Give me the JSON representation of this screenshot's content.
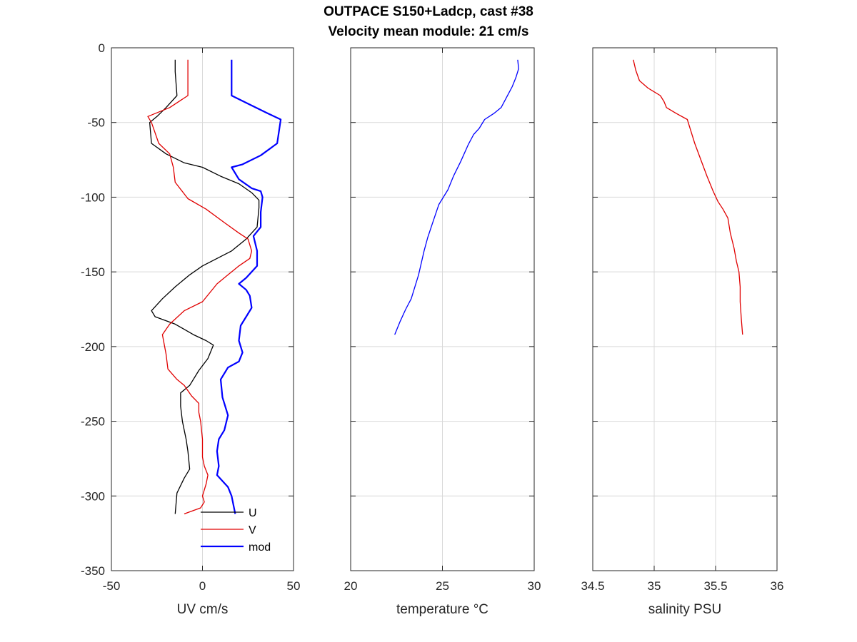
{
  "title_line1": "OUTPACE S150+Ladcp, cast #38",
  "title_line2": "Velocity mean module:  21 cm/s",
  "colors": {
    "U": "#000000",
    "V": "#e00000",
    "mod": "#0000ff",
    "temperature": "#0000ff",
    "salinity": "#e00000",
    "grid": "#d9d9d9",
    "axis": "#262626"
  },
  "chart_data": [
    {
      "type": "line",
      "xlabel": "UV cm/s",
      "ylabel": "",
      "xlim": [
        -50,
        50
      ],
      "ylim": [
        -350,
        0
      ],
      "xticks": [
        -50,
        0,
        50
      ],
      "yticks": [
        0,
        -50,
        -100,
        -150,
        -200,
        -250,
        -300,
        -350
      ],
      "grid": true,
      "legend_placement": "bottom-right",
      "series": [
        {
          "name": "U",
          "color": "#000000",
          "x": [
            -15,
            -15,
            -14,
            -20,
            -25,
            -29,
            -28,
            -20,
            -10,
            0,
            10,
            20,
            27,
            31,
            31,
            30,
            24,
            16,
            8,
            0,
            -7,
            -15,
            -22,
            -28,
            -26,
            -15,
            -5,
            2,
            6,
            3,
            -2,
            -7,
            -12,
            -12,
            -11,
            -9,
            -8,
            -7,
            -10,
            -14,
            -15
          ],
          "y": [
            -8,
            -16,
            -32,
            -40,
            -46,
            -50,
            -64,
            -71,
            -77,
            -80,
            -86,
            -91,
            -97,
            -102,
            -107,
            -120,
            -128,
            -136,
            -141,
            -146,
            -152,
            -160,
            -168,
            -176,
            -180,
            -185,
            -192,
            -196,
            -199,
            -208,
            -216,
            -226,
            -231,
            -240,
            -250,
            -262,
            -270,
            -282,
            -288,
            -298,
            -312
          ]
        },
        {
          "name": "V",
          "color": "#e00000",
          "x": [
            -8,
            -8,
            -8,
            -18,
            -30,
            -28,
            -24,
            -18,
            -16,
            -15,
            -8,
            2,
            12,
            20,
            25,
            27,
            26,
            20,
            14,
            8,
            0,
            -10,
            -18,
            -22,
            -20,
            -19,
            -14,
            -10,
            -6,
            -2,
            -2,
            -1,
            0,
            0,
            1,
            3,
            2,
            0,
            1,
            -1,
            -10
          ],
          "y": [
            -8,
            -16,
            -32,
            -40,
            -46,
            -50,
            -64,
            -71,
            -80,
            -90,
            -101,
            -108,
            -117,
            -124,
            -128,
            -136,
            -141,
            -146,
            -152,
            -158,
            -170,
            -176,
            -185,
            -192,
            -205,
            -215,
            -222,
            -226,
            -233,
            -238,
            -244,
            -250,
            -262,
            -274,
            -280,
            -286,
            -292,
            -300,
            -304,
            -308,
            -312
          ]
        },
        {
          "name": "mod",
          "color": "#0000ff",
          "x": [
            16,
            16,
            16,
            26,
            36,
            43,
            41,
            32,
            22,
            16,
            20,
            27,
            32,
            33,
            32,
            32,
            28,
            30,
            30,
            24,
            20,
            24,
            26,
            27,
            24,
            21,
            20,
            22,
            20,
            14,
            10,
            11,
            12,
            14,
            12,
            9,
            8,
            9,
            8,
            14,
            16,
            18
          ],
          "y": [
            -8,
            -16,
            -32,
            -38,
            -44,
            -48,
            -64,
            -72,
            -78,
            -80,
            -88,
            -94,
            -96,
            -100,
            -110,
            -120,
            -126,
            -136,
            -146,
            -154,
            -158,
            -162,
            -166,
            -174,
            -180,
            -186,
            -196,
            -204,
            -210,
            -214,
            -222,
            -234,
            -238,
            -246,
            -256,
            -262,
            -270,
            -280,
            -286,
            -294,
            -300,
            -312
          ]
        }
      ]
    },
    {
      "type": "line",
      "xlabel": "temperature °C",
      "ylabel": "",
      "xlim": [
        20,
        30
      ],
      "ylim": [
        -350,
        0
      ],
      "xticks": [
        20,
        25,
        30
      ],
      "grid": true,
      "series": [
        {
          "name": "",
          "color": "#0000ff",
          "x": [
            29.1,
            29.15,
            29.0,
            28.8,
            28.5,
            28.2,
            27.8,
            27.3,
            27.0,
            26.7,
            26.4,
            26.0,
            25.6,
            25.3,
            24.8,
            24.5,
            24.2,
            24.0,
            23.7,
            23.3,
            23.0,
            22.7,
            22.4
          ],
          "y": [
            -8,
            -14,
            -20,
            -26,
            -33,
            -40,
            -44,
            -48,
            -54,
            -58,
            -65,
            -76,
            -86,
            -95,
            -105,
            -116,
            -127,
            -136,
            -152,
            -168,
            -175,
            -183,
            -192
          ]
        }
      ]
    },
    {
      "type": "line",
      "xlabel": "salinity PSU",
      "ylabel": "",
      "xlim": [
        34.5,
        36
      ],
      "ylim": [
        -350,
        0
      ],
      "xticks": [
        34.5,
        35,
        35.5,
        36
      ],
      "grid": true,
      "series": [
        {
          "name": "",
          "color": "#e00000",
          "x": [
            34.83,
            34.85,
            34.88,
            34.95,
            35.05,
            35.08,
            35.1,
            35.18,
            35.27,
            35.3,
            35.33,
            35.38,
            35.43,
            35.48,
            35.52,
            35.56,
            35.6,
            35.62,
            35.65,
            35.67,
            35.69,
            35.7,
            35.7,
            35.71,
            35.72
          ],
          "y": [
            -8,
            -15,
            -22,
            -27,
            -32,
            -36,
            -40,
            -44,
            -48,
            -56,
            -64,
            -75,
            -86,
            -96,
            -103,
            -108,
            -114,
            -124,
            -134,
            -143,
            -150,
            -160,
            -170,
            -182,
            -192
          ]
        }
      ]
    }
  ]
}
